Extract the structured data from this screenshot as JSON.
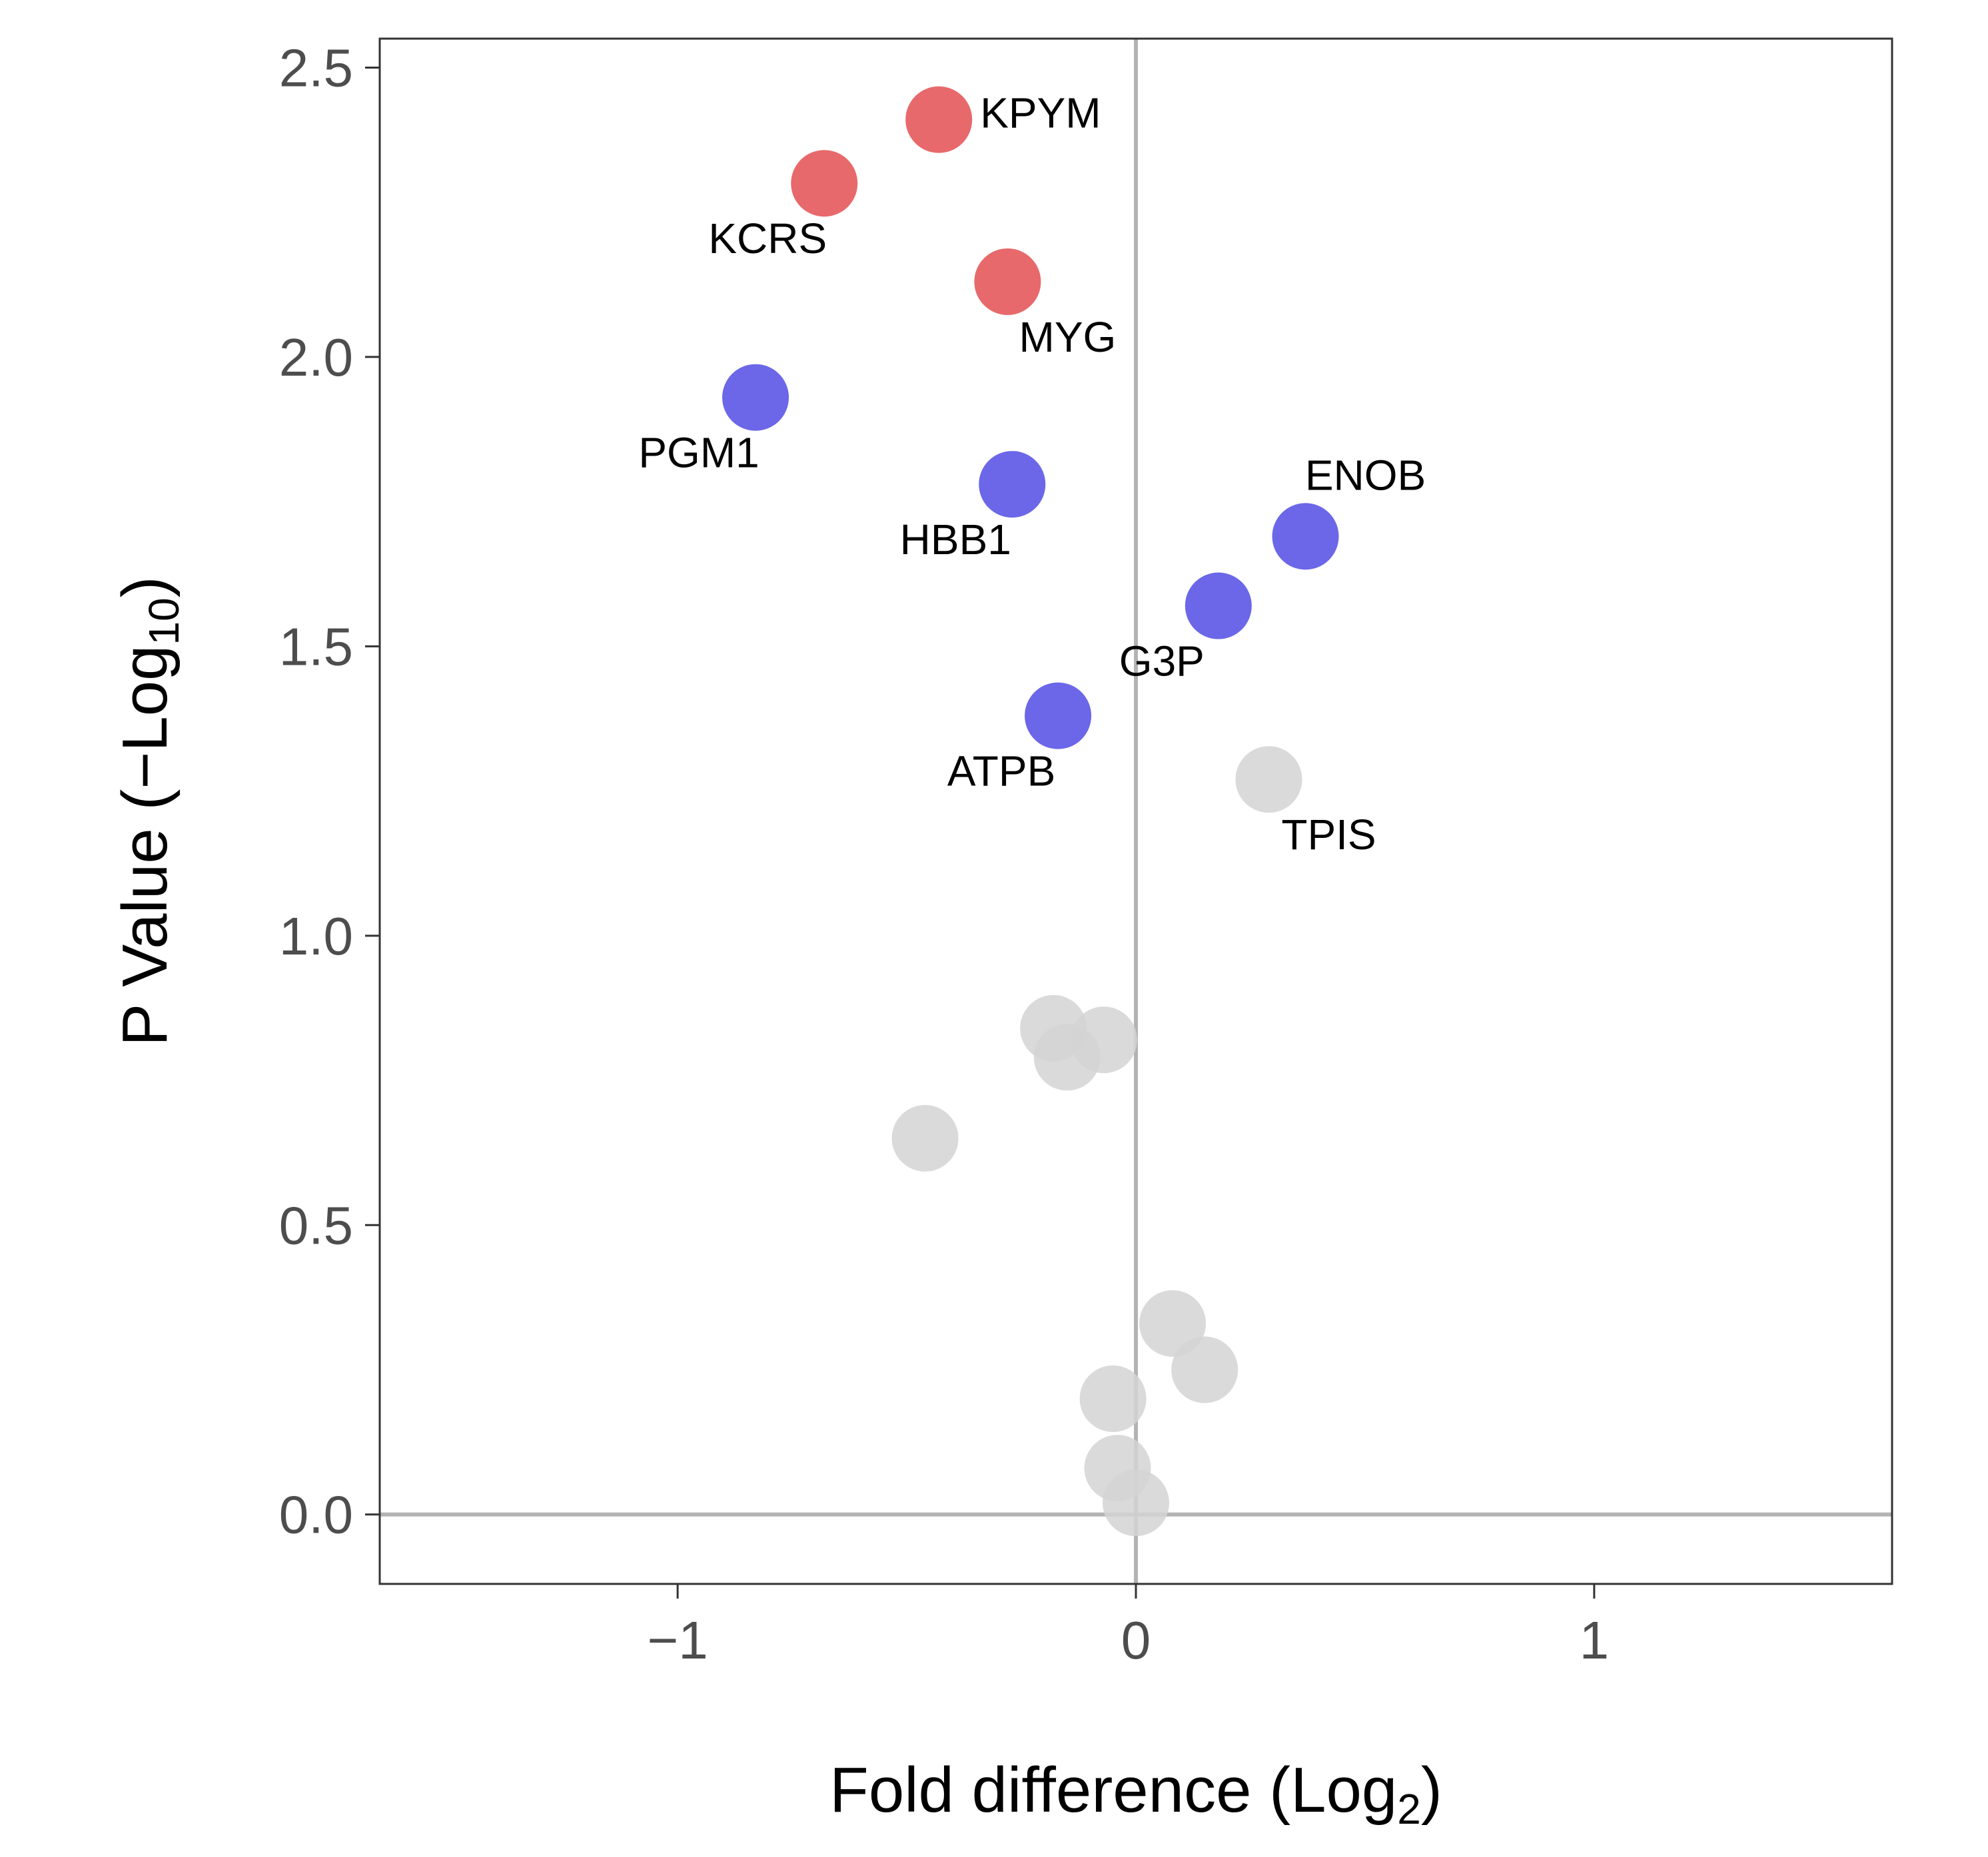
{
  "chart_data": {
    "type": "scatter",
    "title": "",
    "xlabel": {
      "main": "Fold difference (Log",
      "sub": "2",
      "close": ")"
    },
    "ylabel": {
      "main": "P Value (−Log",
      "sub": "10",
      "close": ")"
    },
    "xlim": [
      -1.65,
      1.65
    ],
    "ylim": [
      -0.12,
      2.55
    ],
    "x_ticks": [
      {
        "value": -1,
        "label": "−1"
      },
      {
        "value": 0,
        "label": "0"
      },
      {
        "value": 1,
        "label": "1"
      }
    ],
    "y_ticks": [
      {
        "value": 0.0,
        "label": "0.0"
      },
      {
        "value": 0.5,
        "label": "0.5"
      },
      {
        "value": 1.0,
        "label": "1.0"
      },
      {
        "value": 1.5,
        "label": "1.5"
      },
      {
        "value": 2.0,
        "label": "2.0"
      },
      {
        "value": 2.5,
        "label": "2.5"
      }
    ],
    "reference_lines": {
      "x": 0,
      "y": 0
    },
    "grid": false,
    "legend": "none",
    "colors": {
      "up": "#e8696b",
      "down": "#6b67e8",
      "ns": "#d3d3d3",
      "reference": "#b3b3b3",
      "frame": "#333333"
    },
    "points": [
      {
        "label": "KPYM",
        "x": -0.43,
        "y": 2.41,
        "group": "up",
        "label_anchor": "right"
      },
      {
        "label": "KCRS",
        "x": -0.68,
        "y": 2.3,
        "group": "up",
        "label_anchor": "below-left"
      },
      {
        "label": "MYG",
        "x": -0.28,
        "y": 2.13,
        "group": "up",
        "label_anchor": "below-right"
      },
      {
        "label": "PGM1",
        "x": -0.83,
        "y": 1.93,
        "group": "down",
        "label_anchor": "below-left"
      },
      {
        "label": "HBB1",
        "x": -0.27,
        "y": 1.78,
        "group": "down",
        "label_anchor": "below-left"
      },
      {
        "label": "ENOB",
        "x": 0.37,
        "y": 1.69,
        "group": "down",
        "label_anchor": "above-right"
      },
      {
        "label": "G3P",
        "x": 0.18,
        "y": 1.57,
        "group": "down",
        "label_anchor": "below-left"
      },
      {
        "label": "ATPB",
        "x": -0.17,
        "y": 1.38,
        "group": "down",
        "label_anchor": "below-left"
      },
      {
        "label": "TPIS",
        "x": 0.29,
        "y": 1.27,
        "group": "ns",
        "label_anchor": "below-right"
      },
      {
        "label": "",
        "x": -0.18,
        "y": 0.84,
        "group": "ns"
      },
      {
        "label": "",
        "x": -0.07,
        "y": 0.82,
        "group": "ns"
      },
      {
        "label": "",
        "x": -0.15,
        "y": 0.79,
        "group": "ns"
      },
      {
        "label": "",
        "x": -0.46,
        "y": 0.65,
        "group": "ns"
      },
      {
        "label": "",
        "x": 0.08,
        "y": 0.33,
        "group": "ns"
      },
      {
        "label": "",
        "x": 0.15,
        "y": 0.25,
        "group": "ns"
      },
      {
        "label": "",
        "x": -0.05,
        "y": 0.2,
        "group": "ns"
      },
      {
        "label": "",
        "x": -0.04,
        "y": 0.08,
        "group": "ns"
      },
      {
        "label": "",
        "x": 0.0,
        "y": 0.02,
        "group": "ns"
      }
    ]
  }
}
